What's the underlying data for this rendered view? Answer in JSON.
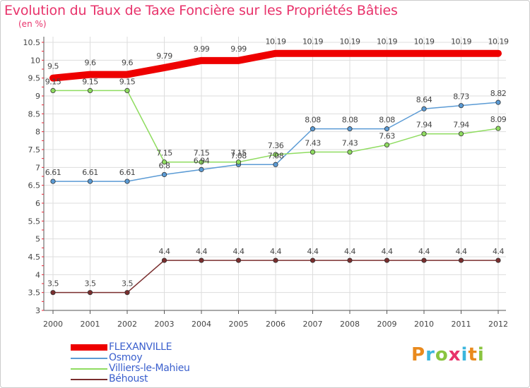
{
  "title": "Evolution du Taux de Taxe Foncière sur les Propriétés Bâties",
  "unit_label": "(en %)",
  "brand": {
    "text": "Proxiti",
    "letters": [
      {
        "ch": "P",
        "color": "#e98a1d"
      },
      {
        "ch": "r",
        "color": "#3cb6dd"
      },
      {
        "ch": "o",
        "color": "#8ac43f"
      },
      {
        "ch": "x",
        "color": "#e8336b"
      },
      {
        "ch": "i",
        "color": "#3cb6dd"
      },
      {
        "ch": "t",
        "color": "#e98a1d"
      },
      {
        "ch": "i",
        "color": "#8ac43f"
      }
    ]
  },
  "chart_data": {
    "type": "line",
    "x": [
      "2000",
      "2001",
      "2002",
      "2003",
      "2004",
      "2005",
      "2006",
      "2007",
      "2008",
      "2009",
      "2010",
      "2011",
      "2012"
    ],
    "ylim": [
      3,
      10.5
    ],
    "yticks": [
      "3",
      "3.5",
      "4",
      "4.5",
      "5",
      "5.5",
      "6",
      "6.5",
      "7",
      "7.5",
      "8",
      "8.5",
      "9",
      "9.5",
      "10",
      "10.5"
    ],
    "grid": true,
    "legend_position": "bottom-left",
    "series": [
      {
        "name": "FLEXANVILLE",
        "color": "#ee0000",
        "values": [
          9.5,
          9.6,
          9.6,
          9.79,
          9.99,
          9.99,
          10.19,
          10.19,
          10.19,
          10.19,
          10.19,
          10.19,
          10.19
        ],
        "labels": [
          "9.5",
          "9.6",
          "9.6",
          "9.79",
          "9.99",
          "9.99",
          "10.19",
          "10.19",
          "10.19",
          "10.19",
          "10.19",
          "10.19",
          "10.19"
        ]
      },
      {
        "name": "Osmoy",
        "color": "#5b9bd5",
        "values": [
          6.61,
          6.61,
          6.61,
          6.8,
          6.94,
          7.08,
          7.08,
          8.08,
          8.08,
          8.08,
          8.64,
          8.73,
          8.82
        ],
        "labels": [
          "6.61",
          "6.61",
          "6.61",
          "6.8",
          "6.94",
          "7.08",
          "7.08",
          "8.08",
          "8.08",
          "8.08",
          "8.64",
          "8.73",
          "8.82"
        ]
      },
      {
        "name": "Villiers-le-Mahieu",
        "color": "#8fdc60",
        "values": [
          9.15,
          9.15,
          9.15,
          7.15,
          7.15,
          7.15,
          7.36,
          7.43,
          7.43,
          7.63,
          7.94,
          7.94,
          8.09
        ],
        "labels": [
          "9.15",
          "9.15",
          "9.15",
          "7.15",
          "7.15",
          "7.15",
          "7.36",
          "7.43",
          "7.43",
          "7.63",
          "7.94",
          "7.94",
          "8.09"
        ]
      },
      {
        "name": "Béhoust",
        "color": "#7a2e2e",
        "values": [
          3.5,
          3.5,
          3.5,
          4.4,
          4.4,
          4.4,
          4.4,
          4.4,
          4.4,
          4.4,
          4.4,
          4.4,
          4.4
        ],
        "labels": [
          "3.5",
          "3.5",
          "3.5",
          "4.4",
          "4.4",
          "4.4",
          "4.4",
          "4.4",
          "4.4",
          "4.4",
          "4.4",
          "4.4",
          "4.4"
        ]
      }
    ]
  }
}
